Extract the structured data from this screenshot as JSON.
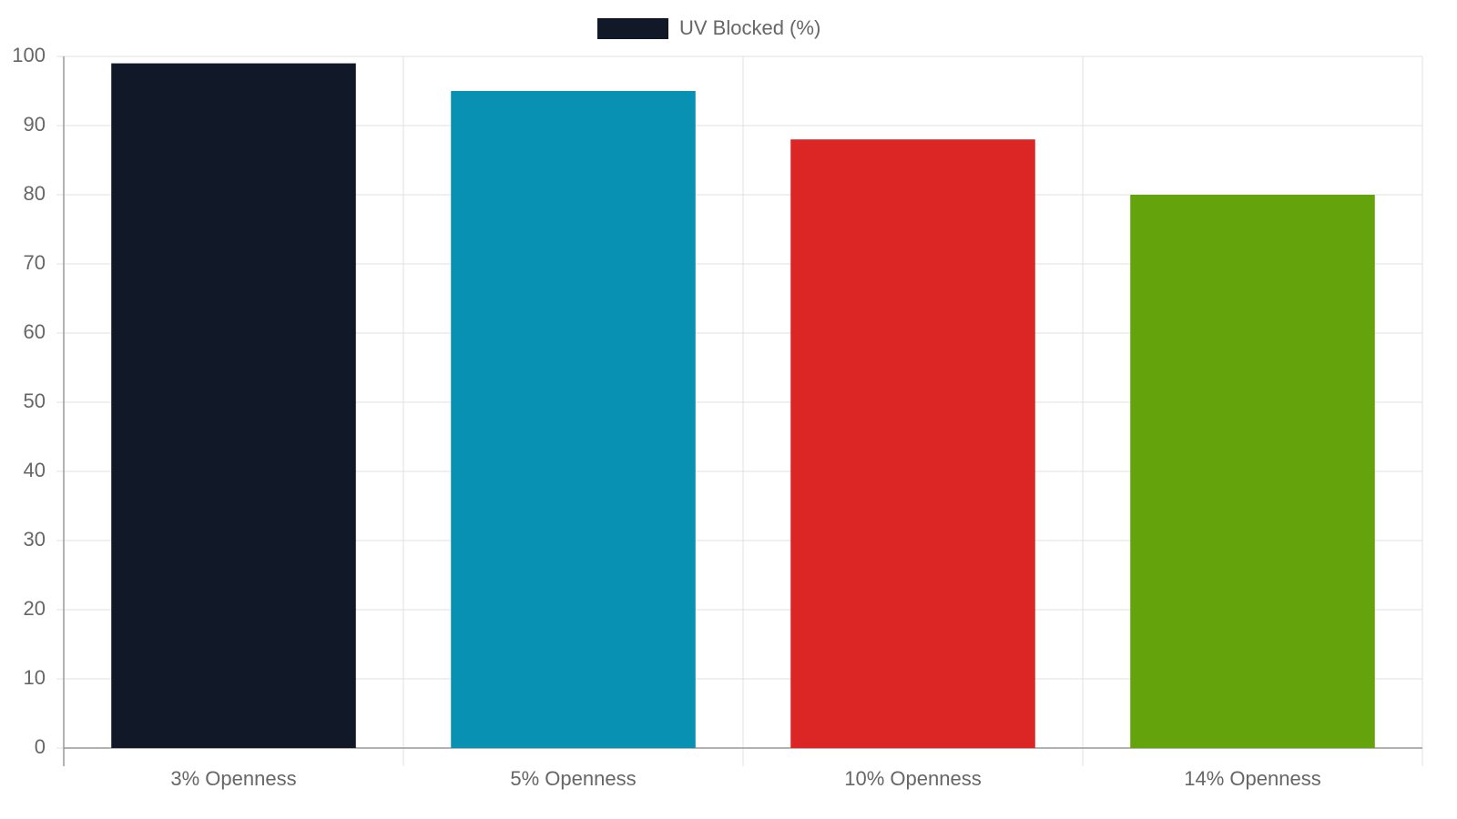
{
  "chart_data": {
    "type": "bar",
    "categories": [
      "3% Openness",
      "5% Openness",
      "10% Openness",
      "14% Openness"
    ],
    "series": [
      {
        "name": "UV Blocked (%)",
        "colors": [
          "#111827",
          "#0891b2",
          "#dc2626",
          "#65a30d"
        ],
        "values": [
          99,
          95,
          88,
          80
        ]
      }
    ],
    "ylim": [
      0,
      100
    ],
    "yticks": [
      0,
      10,
      20,
      30,
      40,
      50,
      60,
      70,
      80,
      90,
      100
    ],
    "grid": true,
    "legend": "top"
  }
}
